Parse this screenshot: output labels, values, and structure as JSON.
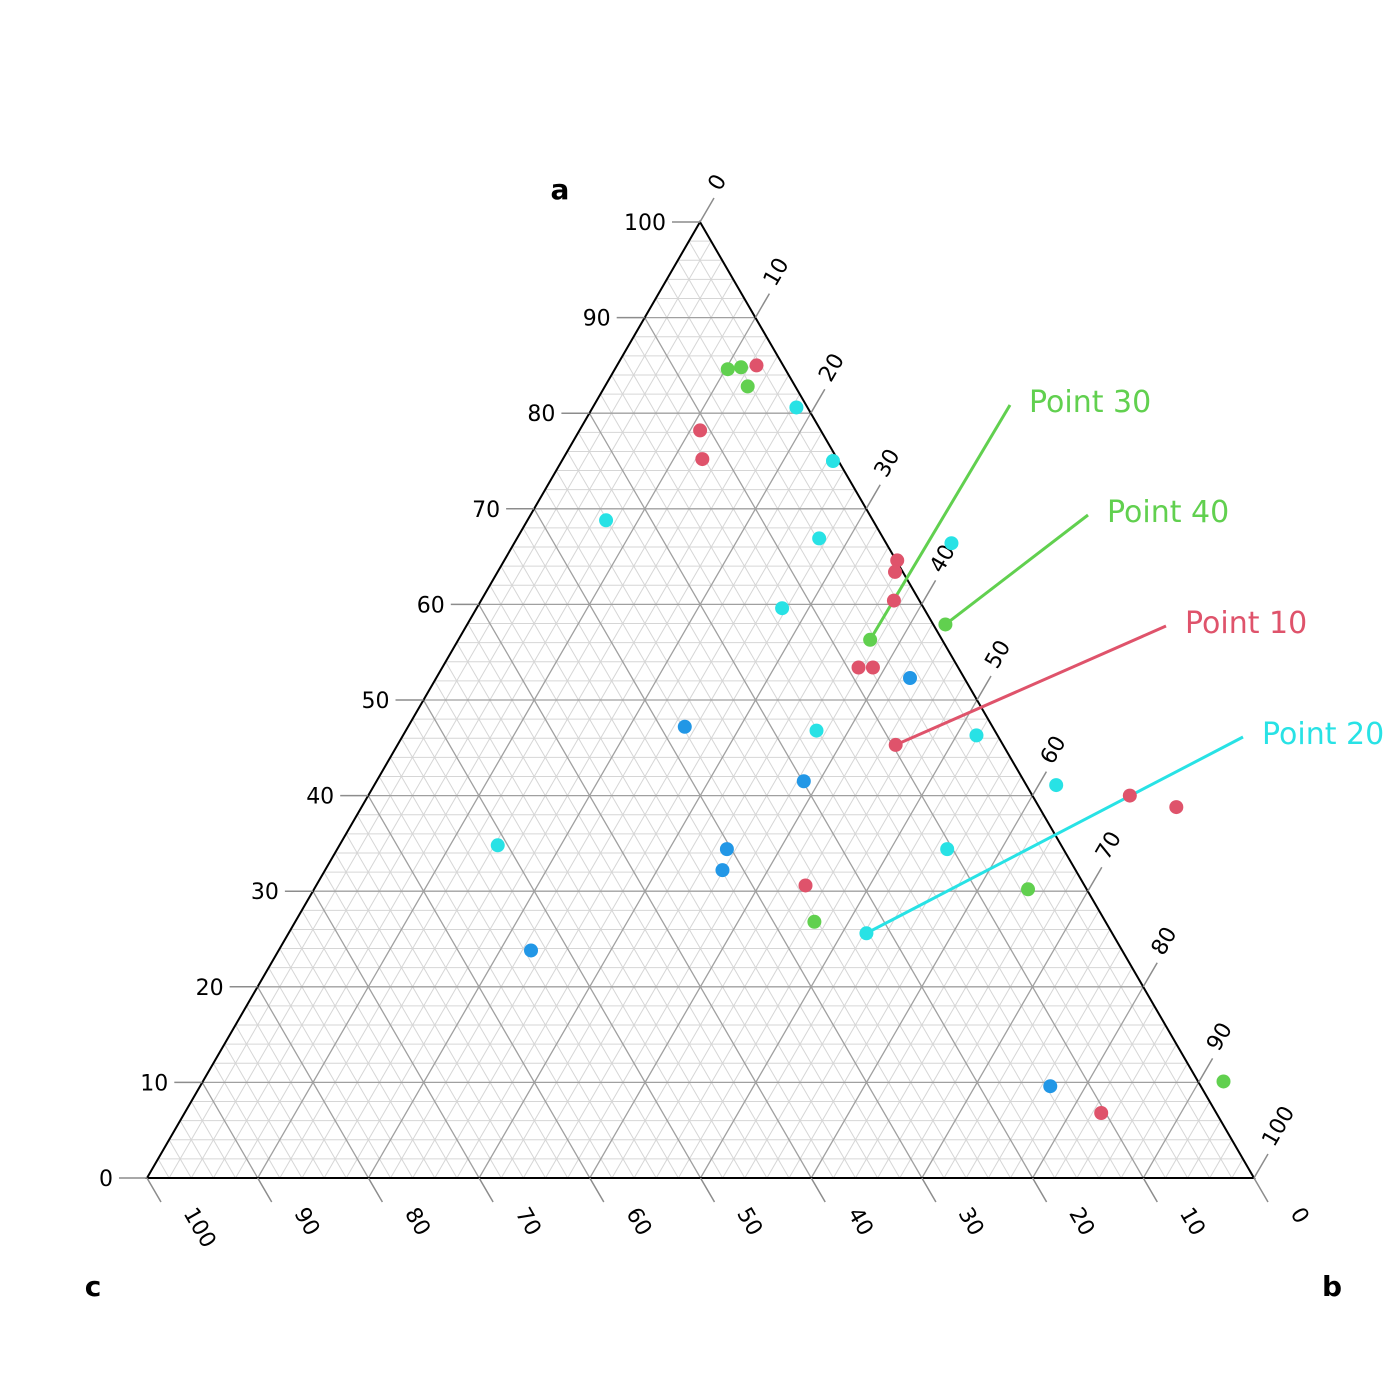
{
  "chart_data": {
    "type": "ternary",
    "axes": {
      "a": "a",
      "b": "b",
      "c": "c"
    },
    "ticks": {
      "a": [
        "0",
        "10",
        "20",
        "30",
        "40",
        "50",
        "60",
        "70",
        "80",
        "90",
        "100"
      ],
      "b": [
        "0",
        "10",
        "20",
        "30",
        "40",
        "50",
        "60",
        "70",
        "80",
        "90",
        "100"
      ],
      "c": [
        "100",
        "90",
        "80",
        "70",
        "60",
        "50",
        "40",
        "30",
        "20",
        "10",
        "0"
      ]
    },
    "grid": {
      "major_step": 10,
      "minor_step": 2
    },
    "colors": {
      "g1": "#df536b",
      "g2": "#61d04f",
      "g3": "#28e2e5",
      "g4": "#2297e6"
    },
    "points": [
      {
        "a": 85,
        "b": 12.6,
        "group": "g1"
      },
      {
        "a": 78.2,
        "b": 10.9,
        "group": "g1"
      },
      {
        "a": 75.2,
        "b": 12.6,
        "group": "g1"
      },
      {
        "a": 64.6,
        "b": 35.5,
        "group": "g1"
      },
      {
        "a": 63.4,
        "b": 35.9,
        "group": "g1"
      },
      {
        "a": 60.4,
        "b": 37.3,
        "group": "g1"
      },
      {
        "a": 53.4,
        "b": 37.6,
        "group": "g1"
      },
      {
        "a": 53.4,
        "b": 38.9,
        "group": "g1"
      },
      {
        "a": 45.3,
        "b": 45.0,
        "group": "g1"
      },
      {
        "a": 40.0,
        "b": 68.8,
        "group": "g1"
      },
      {
        "a": 38.8,
        "b": 73.6,
        "group": "g1"
      },
      {
        "a": 30.6,
        "b": 44.2,
        "group": "g1"
      },
      {
        "a": 6.8,
        "b": 82.8,
        "group": "g1"
      },
      {
        "a": 84.6,
        "b": 10.2,
        "group": "g2"
      },
      {
        "a": 84.8,
        "b": 11.3,
        "group": "g2"
      },
      {
        "a": 82.8,
        "b": 12.9,
        "group": "g2"
      },
      {
        "a": 56.3,
        "b": 37.2,
        "group": "g2"
      },
      {
        "a": 57.9,
        "b": 43.2,
        "group": "g2"
      },
      {
        "a": 30.2,
        "b": 64.5,
        "group": "g2"
      },
      {
        "a": 26.8,
        "b": 46.9,
        "group": "g2"
      },
      {
        "a": 10.1,
        "b": 92.2,
        "group": "g2"
      },
      {
        "a": 80.6,
        "b": 18.4,
        "group": "g3"
      },
      {
        "a": 75.0,
        "b": 24.5,
        "group": "g3"
      },
      {
        "a": 68.8,
        "b": 7.1,
        "group": "g3"
      },
      {
        "a": 66.9,
        "b": 27.3,
        "group": "g3"
      },
      {
        "a": 66.4,
        "b": 39.5,
        "group": "g3"
      },
      {
        "a": 59.6,
        "b": 27.6,
        "group": "g3"
      },
      {
        "a": 46.8,
        "b": 37.1,
        "group": "g3"
      },
      {
        "a": 46.3,
        "b": 51.8,
        "group": "g3"
      },
      {
        "a": 41.1,
        "b": 61.6,
        "group": "g3"
      },
      {
        "a": 34.8,
        "b": 14.3,
        "group": "g3"
      },
      {
        "a": 34.4,
        "b": 55.1,
        "group": "g3"
      },
      {
        "a": 25.6,
        "b": 52.2,
        "group": "g3"
      },
      {
        "a": 52.3,
        "b": 42.8,
        "group": "g4"
      },
      {
        "a": 47.2,
        "b": 25.0,
        "group": "g4"
      },
      {
        "a": 41.5,
        "b": 38.6,
        "group": "g4"
      },
      {
        "a": 34.4,
        "b": 35.2,
        "group": "g4"
      },
      {
        "a": 32.2,
        "b": 35.9,
        "group": "g4"
      },
      {
        "a": 23.8,
        "b": 22.8,
        "group": "g4"
      },
      {
        "a": 9.6,
        "b": 76.8,
        "group": "g4"
      }
    ],
    "callouts": [
      {
        "label": "Point 30",
        "a": 56.3,
        "b": 37.2,
        "group": "g2"
      },
      {
        "label": "Point 40",
        "a": 57.9,
        "b": 43.2,
        "group": "g2"
      },
      {
        "label": "Point 10",
        "a": 45.3,
        "b": 45.0,
        "group": "g1"
      },
      {
        "label": "Point 20",
        "a": 25.6,
        "b": 52.2,
        "group": "g3"
      }
    ]
  }
}
